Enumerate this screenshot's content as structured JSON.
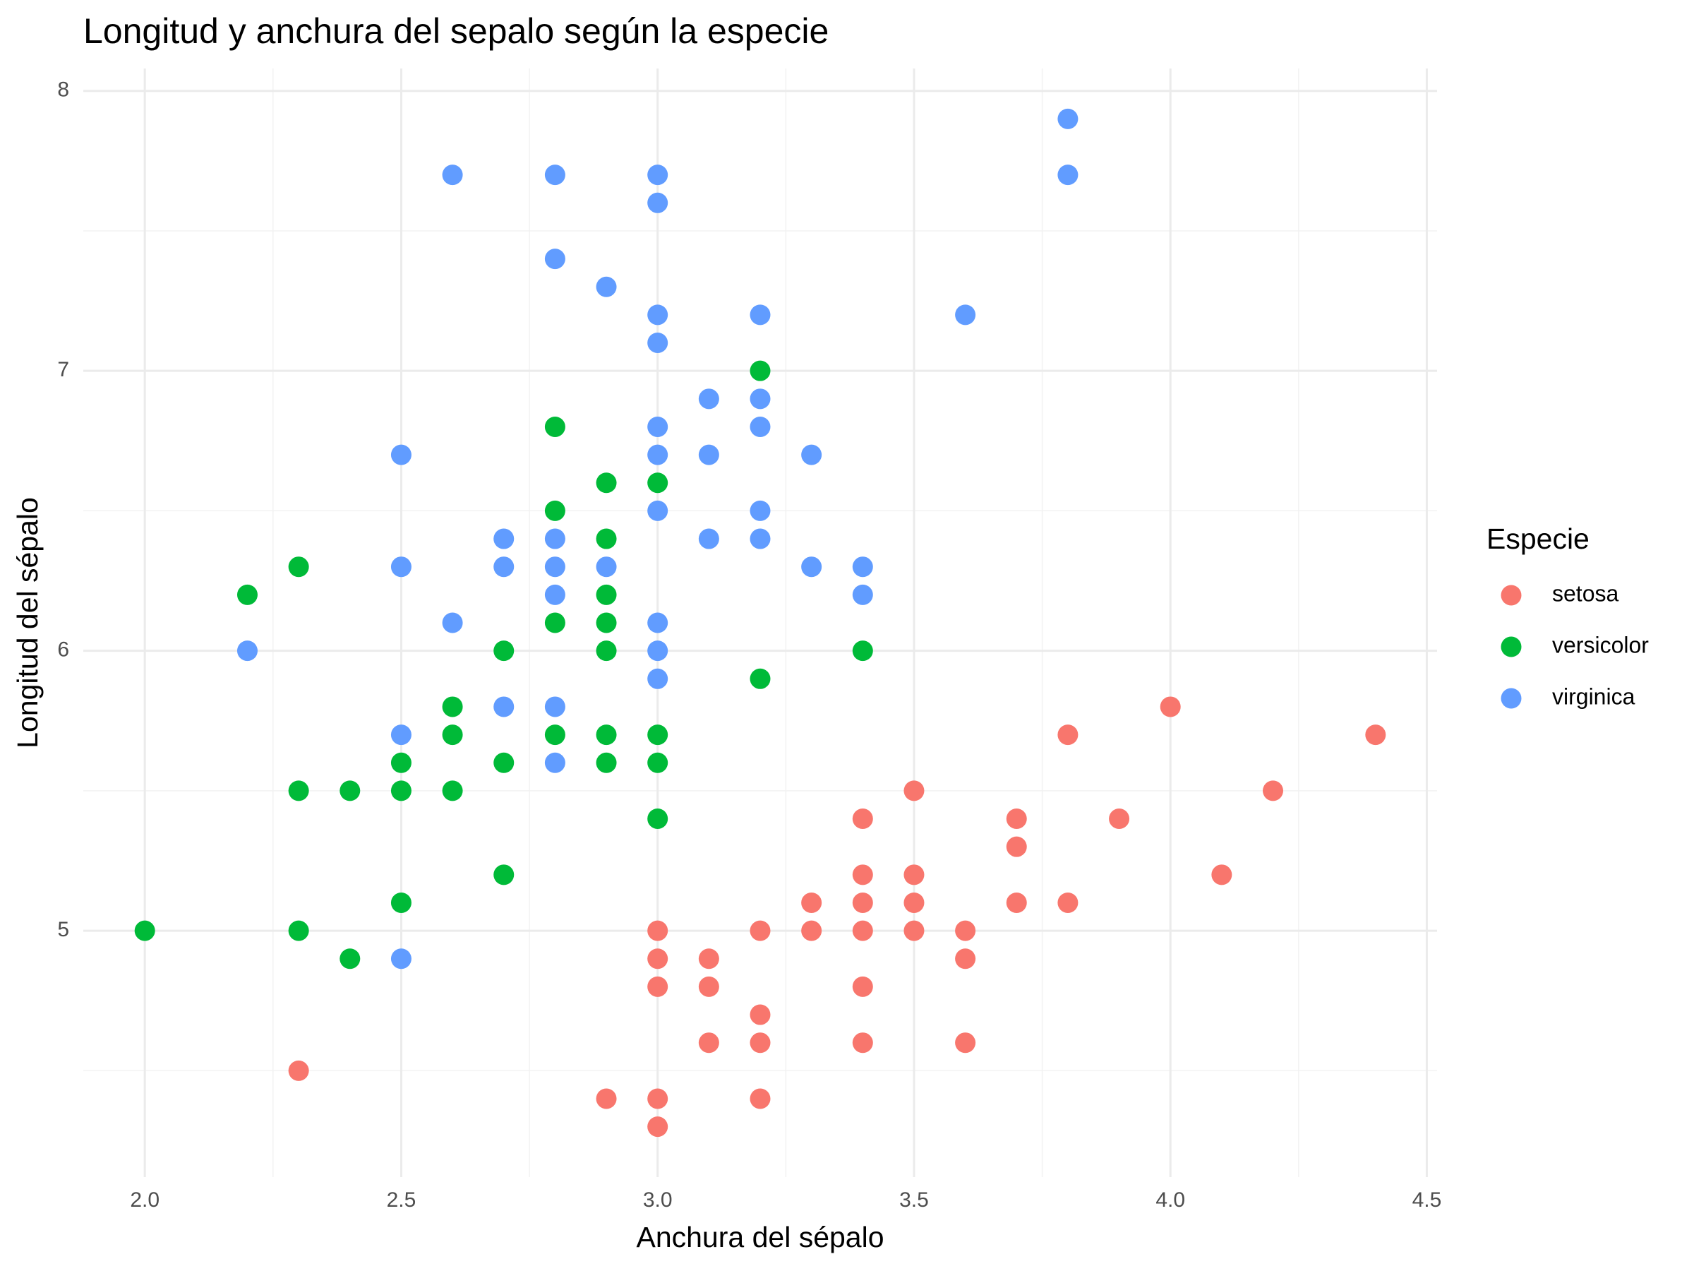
{
  "chart_data": {
    "type": "scatter",
    "title": "Longitud y anchura del sepalo según la especie",
    "x_label": "Anchura del sépalo",
    "y_label": "Longitud del sépalo",
    "legend_title": "Especie",
    "legend_position": "right",
    "grid": true,
    "xlim": [
      1.88,
      4.52
    ],
    "ylim": [
      4.12,
      8.08
    ],
    "xticks": [
      {
        "value": 2.0,
        "label": "2.0"
      },
      {
        "value": 2.5,
        "label": "2.5"
      },
      {
        "value": 3.0,
        "label": "3.0"
      },
      {
        "value": 3.5,
        "label": "3.5"
      },
      {
        "value": 4.0,
        "label": "4.0"
      },
      {
        "value": 4.5,
        "label": "4.5"
      }
    ],
    "yticks": [
      5,
      6,
      7,
      8
    ],
    "series": [
      {
        "name": "setosa",
        "color": "#F8766D",
        "x": [
          2.3,
          2.9,
          3.0,
          3.0,
          3.2,
          3.0,
          3.0,
          3.0,
          3.1,
          3.1,
          3.1,
          3.2,
          3.2,
          3.2,
          3.3,
          3.3,
          3.4,
          3.4,
          3.4,
          3.4,
          3.4,
          3.4,
          3.5,
          3.5,
          3.5,
          3.5,
          3.6,
          3.6,
          3.6,
          3.7,
          3.7,
          3.7,
          3.8,
          3.8,
          3.9,
          4.0,
          4.1,
          4.2,
          4.4
        ],
        "values": [
          4.5,
          4.4,
          4.4,
          4.3,
          4.4,
          5.0,
          4.9,
          4.8,
          4.9,
          4.8,
          4.6,
          5.0,
          4.7,
          4.6,
          5.1,
          5.0,
          5.4,
          5.2,
          5.1,
          5.0,
          4.8,
          4.6,
          5.5,
          5.2,
          5.1,
          5.0,
          5.0,
          4.9,
          4.6,
          5.4,
          5.3,
          5.1,
          5.7,
          5.1,
          5.4,
          5.8,
          5.2,
          5.5,
          5.7
        ]
      },
      {
        "name": "versicolor",
        "color": "#00BA38",
        "x": [
          2.0,
          2.2,
          2.3,
          2.3,
          2.3,
          2.4,
          2.4,
          2.5,
          2.5,
          2.5,
          2.6,
          2.6,
          2.6,
          2.7,
          2.7,
          2.7,
          2.8,
          2.8,
          2.8,
          2.8,
          2.9,
          2.9,
          2.9,
          2.9,
          2.9,
          2.9,
          2.9,
          3.0,
          3.0,
          3.0,
          3.0,
          3.2,
          3.2,
          3.4
        ],
        "values": [
          5.0,
          6.2,
          6.3,
          5.5,
          5.0,
          5.5,
          4.9,
          5.6,
          5.5,
          5.1,
          5.8,
          5.7,
          5.5,
          6.0,
          5.6,
          5.2,
          6.8,
          6.5,
          6.1,
          5.7,
          6.6,
          6.4,
          6.2,
          6.1,
          6.0,
          5.7,
          5.6,
          6.6,
          5.7,
          5.6,
          5.4,
          7.0,
          5.9,
          6.0
        ]
      },
      {
        "name": "virginica",
        "color": "#619CFF",
        "x": [
          2.2,
          2.5,
          2.5,
          2.5,
          2.5,
          2.6,
          2.6,
          2.7,
          2.7,
          2.7,
          2.8,
          2.8,
          2.8,
          2.8,
          2.8,
          2.8,
          2.8,
          2.9,
          2.9,
          3.0,
          3.0,
          3.0,
          3.0,
          3.0,
          3.0,
          3.0,
          3.0,
          3.0,
          3.0,
          3.1,
          3.1,
          3.1,
          3.2,
          3.2,
          3.2,
          3.2,
          3.2,
          3.3,
          3.3,
          3.4,
          3.4,
          3.6,
          3.8,
          3.8
        ],
        "values": [
          6.0,
          6.7,
          6.3,
          5.7,
          4.9,
          7.7,
          6.1,
          6.4,
          6.3,
          5.8,
          7.7,
          7.4,
          6.4,
          6.3,
          6.2,
          5.8,
          5.6,
          7.3,
          6.3,
          7.7,
          7.6,
          7.2,
          7.1,
          6.8,
          6.7,
          6.5,
          6.1,
          6.0,
          5.9,
          6.9,
          6.7,
          6.4,
          7.2,
          6.9,
          6.8,
          6.5,
          6.4,
          6.7,
          6.3,
          6.3,
          6.2,
          7.2,
          7.9,
          7.7
        ]
      }
    ]
  }
}
